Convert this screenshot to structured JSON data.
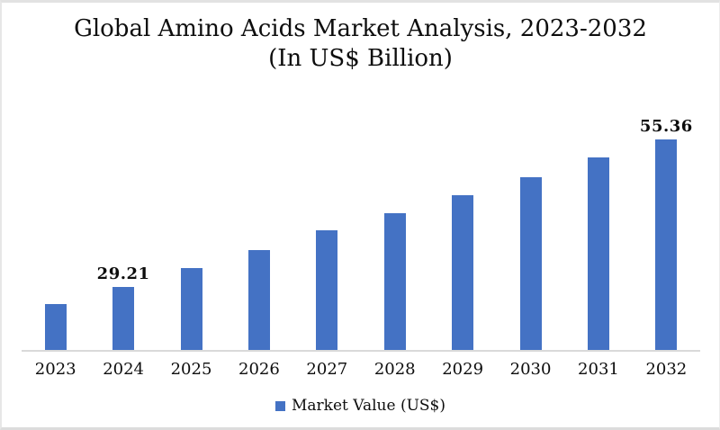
{
  "colors": {
    "bar": "#4472C4",
    "axis_line": "#D9D9D9",
    "text": "#0D0D0D",
    "background": "#FFFFFF",
    "border": "#E2E2E2"
  },
  "legend": {
    "label": "Market Value (US$)",
    "swatch_color": "#4472C4"
  },
  "chart_data": {
    "type": "bar",
    "title": "Global Amino Acids Market Analysis, 2023-2032",
    "subtitle": "(In US$ Billion)",
    "xlabel": "",
    "ylabel": "",
    "categories": [
      "2023",
      "2024",
      "2025",
      "2026",
      "2027",
      "2028",
      "2029",
      "2030",
      "2031",
      "2032"
    ],
    "series": [
      {
        "name": "Market Value (US$)",
        "values": [
          26.1,
          29.21,
          32.5,
          35.7,
          39.2,
          42.3,
          45.5,
          48.7,
          52.1,
          55.36
        ]
      }
    ],
    "data_labels": [
      "",
      "29.21",
      "",
      "",
      "",
      "",
      "",
      "",
      "",
      "55.36"
    ],
    "ylim": [
      18,
      60
    ],
    "grid": false,
    "y_axis_visible": false,
    "legend_position": "bottom"
  }
}
